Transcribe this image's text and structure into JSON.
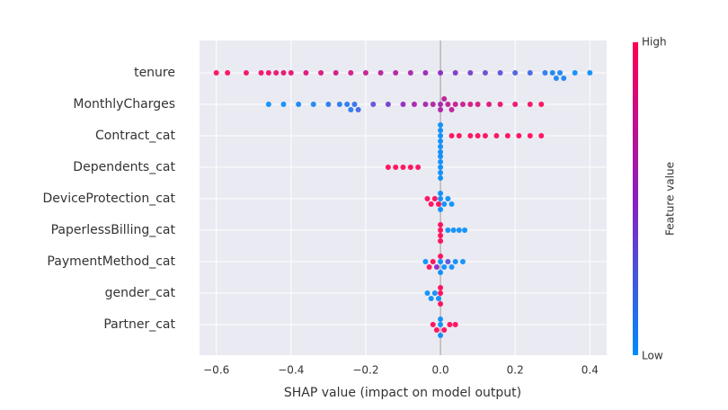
{
  "chart_data": {
    "type": "beeswarm",
    "x_label": "SHAP value (impact on model output)",
    "xlim": [
      -0.645,
      0.445
    ],
    "xticks": [
      {
        "value": -0.6,
        "label": "−0.6"
      },
      {
        "value": -0.4,
        "label": "−0.4"
      },
      {
        "value": -0.2,
        "label": "−0.2"
      },
      {
        "value": 0,
        "label": "0.0"
      },
      0.2,
      0.4
    ],
    "grid": true,
    "colormap": [
      "#008bfb",
      "#8a1fc0",
      "#ff0052"
    ],
    "colorbar_title": "Feature value",
    "colorbar_high": "High",
    "colorbar_low": "Low",
    "features": [
      {
        "name": "tenure",
        "shap": [
          -0.6,
          -0.57,
          -0.52,
          -0.48,
          -0.46,
          -0.44,
          -0.42,
          -0.4,
          -0.36,
          -0.32,
          -0.28,
          -0.24,
          -0.2,
          -0.16,
          -0.12,
          -0.08,
          -0.04,
          0,
          0.04,
          0.08,
          0.12,
          0.16,
          0.2,
          0.24,
          0.28,
          0.3,
          0.31,
          0.32,
          0.33,
          0.36,
          0.4
        ],
        "feature_value": [
          1,
          1,
          0.95,
          0.95,
          0.95,
          0.9,
          0.9,
          0.9,
          0.85,
          0.85,
          0.8,
          0.8,
          0.75,
          0.7,
          0.65,
          0.6,
          0.55,
          0.5,
          0.45,
          0.4,
          0.35,
          0.3,
          0.25,
          0.2,
          0.1,
          0.05,
          0.05,
          0.05,
          0.05,
          0,
          0
        ]
      },
      {
        "name": "MonthlyCharges",
        "shap": [
          -0.46,
          -0.42,
          -0.38,
          -0.34,
          -0.3,
          -0.27,
          -0.25,
          -0.24,
          -0.23,
          -0.22,
          -0.18,
          -0.14,
          -0.1,
          -0.07,
          -0.04,
          -0.02,
          0,
          0,
          0.01,
          0.02,
          0.03,
          0.04,
          0.06,
          0.08,
          0.1,
          0.13,
          0.16,
          0.2,
          0.24,
          0.27
        ],
        "feature_value": [
          0,
          0,
          0.05,
          0.05,
          0.1,
          0.1,
          0.1,
          0.1,
          0.15,
          0.2,
          0.3,
          0.4,
          0.5,
          0.6,
          0.6,
          0.65,
          0.6,
          0.65,
          0.7,
          0.7,
          0.7,
          0.75,
          0.75,
          0.8,
          0.8,
          0.85,
          0.9,
          0.9,
          0.95,
          1
        ]
      },
      {
        "name": "Contract_cat",
        "shap": [
          0,
          0,
          0,
          0,
          0,
          0,
          0.03,
          0.05,
          0.08,
          0.1,
          0.12,
          0.15,
          0.18,
          0.21,
          0.24,
          0.27
        ],
        "feature_value": [
          0,
          0,
          0,
          0,
          0,
          0,
          1,
          1,
          1,
          1,
          1,
          1,
          1,
          1,
          1,
          1
        ]
      },
      {
        "name": "Dependents_cat",
        "shap": [
          0,
          0,
          0,
          0,
          0,
          -0.14,
          -0.12,
          -0.1,
          -0.08,
          -0.06
        ],
        "feature_value": [
          0,
          0,
          0,
          0,
          0,
          1,
          1,
          1,
          1,
          1
        ]
      },
      {
        "name": "DeviceProtection_cat",
        "shap": [
          -0.035,
          -0.025,
          -0.015,
          -0.005,
          0,
          0,
          0,
          0.01,
          0.02,
          0.03
        ],
        "feature_value": [
          1,
          1,
          1,
          1,
          0,
          0,
          0,
          0,
          0,
          0
        ]
      },
      {
        "name": "PaperlessBilling_cat",
        "shap": [
          0,
          0,
          0,
          0,
          0.02,
          0.035,
          0.05,
          0.065
        ],
        "feature_value": [
          1,
          1,
          1,
          1,
          0,
          0,
          0,
          0
        ]
      },
      {
        "name": "PaymentMethod_cat",
        "shap": [
          -0.04,
          -0.03,
          -0.02,
          -0.01,
          0,
          0,
          0,
          0.01,
          0.02,
          0.03,
          0.04,
          0.06
        ],
        "feature_value": [
          0,
          1,
          1,
          0.5,
          0,
          1,
          0,
          0,
          0.3,
          0,
          0,
          0
        ]
      },
      {
        "name": "gender_cat",
        "shap": [
          -0.035,
          -0.025,
          -0.015,
          -0.005,
          0,
          0,
          0
        ],
        "feature_value": [
          0,
          0,
          0,
          0,
          1,
          1,
          1
        ]
      },
      {
        "name": "Partner_cat",
        "shap": [
          -0.02,
          -0.01,
          0,
          0,
          0,
          0.01,
          0.025,
          0.04
        ],
        "feature_value": [
          1,
          1,
          0,
          0,
          0,
          1,
          1,
          1
        ]
      }
    ]
  }
}
